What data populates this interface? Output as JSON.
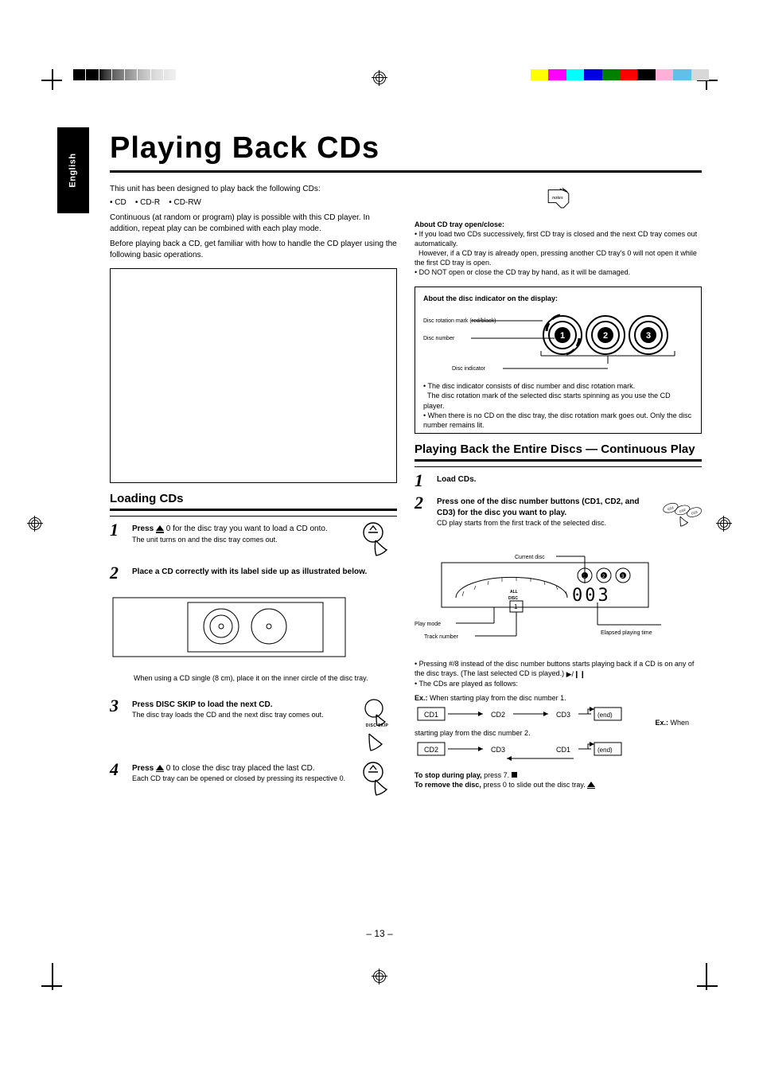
{
  "lang_tab": "English",
  "page_title": "Playing Back CDs",
  "page_number": "– 13 –",
  "color_bar": [
    "#ffff00",
    "#ff00ff",
    "#00ffff",
    "#0000e0",
    "#008000",
    "#ff0000",
    "#000000",
    "#ffb0d8",
    "#60c0e8",
    "#d8d8d8"
  ],
  "left": {
    "intro": "This unit has been designed to play back the following CDs:",
    "bullets": [
      "CD",
      "CD-R",
      "CD-RW"
    ],
    "p1": "Continuous (at random or program) play is possible with this CD player. In addition, repeat play can be combined with each play mode.",
    "p2_a": "Before playing back a CD, get familiar with how to handle the CD player using the following basic operations.",
    "loading_h": "Loading CDs",
    "step1": {
      "b": "Press",
      "t": " 0 for the disc tray you want to load a CD onto.",
      "sub": "The unit turns on and the disc tray comes out."
    },
    "step2": {
      "b": "Place a CD correctly with its label side up as illustrated below.",
      "sub": "When using a CD single (8 cm), place it on the inner circle of the disc tray."
    },
    "step3": {
      "b": "Press DISC SKIP to load the next CD.",
      "sub": "The disc tray loads the CD and the next disc tray comes out."
    },
    "step4": {
      "b": "Press",
      "t": " 0 to close the disc tray placed the last CD.",
      "sub": "Each CD tray can be opened or closed by pressing its respective 0."
    },
    "disc_skip_label": "DISC SKIP"
  },
  "notes": {
    "l1_b": "About CD tray open/close:",
    "l1": "If you load two CDs successively, first CD tray is closed and the next CD tray comes out automatically.",
    "l2": "However, if a CD tray is already open, pressing another CD tray's 0 will not open it while the first CD tray is open.",
    "l3": "DO NOT open or close the CD tray by hand, as it will be damaged."
  },
  "disc_ind": {
    "title": "About the disc indicator on the display:",
    "label_rot": "Disc rotation mark (red/black)",
    "label_num": "Disc number",
    "label_ind": "Disc indicator",
    "p1_a": "The disc indicator consists of disc number and disc rotation mark.",
    "p1_b": "The disc rotation mark of the selected disc starts spinning as you use the CD player.",
    "p2": "When there is no CD on the disc tray, the disc rotation mark goes out. Only the disc number remains lit."
  },
  "continuous": {
    "h": "Playing Back the Entire Discs — Continuous Play",
    "s1_b": "Load CDs.",
    "s2_b": "Press one of the disc number buttons (CD1, CD2, and CD3) for the disc you want to play.",
    "s2_sub": "CD play starts from the first track of the selected disc.",
    "disp_labels": {
      "mode": "Play mode",
      "cur": "Current disc",
      "trk": "Track number",
      "time": "Elapsed playing time"
    },
    "bullets": [
      "Pressing #/8 instead of the disc number buttons starts playing back if a CD is on any of the disc trays. (The last selected CD is played.)",
      "The CDs are played as follows:"
    ],
    "ex_h": "Ex.:",
    "ex1": "When starting play from the disc number 1.",
    "ex2": "When starting play from the disc number 2.",
    "seq1": [
      "CD1",
      "CD2",
      "CD3",
      "(end)"
    ],
    "seq2": [
      "CD2",
      "CD3",
      "CD1",
      "(end)"
    ],
    "stop_b": "To stop during play,",
    "stop_t": " press 7.",
    "remove_b": "To remove the disc,",
    "remove_t": " press 0 to slide out the disc tray.",
    "cd1": "CD1",
    "cd2": "CD2",
    "cd3": "CD3"
  }
}
